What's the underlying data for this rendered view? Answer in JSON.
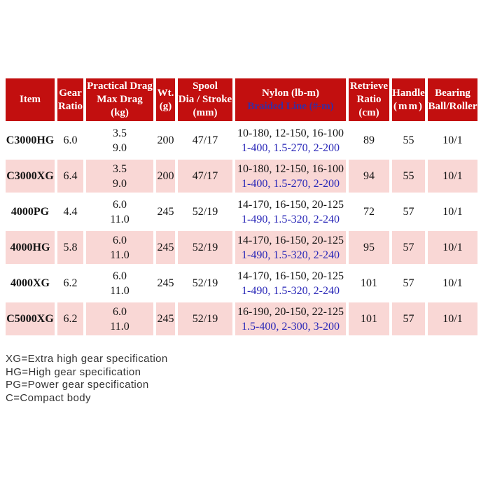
{
  "colors": {
    "header_bg": "#c20f0f",
    "header_text": "#ffffff",
    "pink_row_bg": "#f9d7d5",
    "white_row_bg": "#ffffff",
    "braided_line_text": "#2a28b8",
    "braided_header_text": "#3a2da0",
    "body_text": "#141414"
  },
  "table": {
    "header": {
      "item": "Item",
      "gear": [
        "Gear",
        "Ratio"
      ],
      "drag": [
        "Practical Drag",
        "Max Drag",
        "(kg)"
      ],
      "wt": [
        "Wt.",
        "(g)"
      ],
      "spool": [
        "Spool",
        "Dia / Stroke",
        "(mm)"
      ],
      "line": {
        "nylon": "Nylon (lb-m)",
        "braided": "Braided Line (#-m)"
      },
      "retrieve": [
        "Retrieve",
        "Ratio",
        "(cm)"
      ],
      "handle": [
        "Handle",
        "(mm)"
      ],
      "bearing": [
        "Bearing",
        "Ball/Roller"
      ]
    },
    "rows": [
      {
        "item": "C3000HG",
        "gear": "6.0",
        "drag": [
          "3.5",
          "9.0"
        ],
        "wt": "200",
        "spool": "47/17",
        "nylon": "10-180, 12-150, 16-100",
        "braided": "1-400, 1.5-270, 2-200",
        "retrieve": "89",
        "handle": "55",
        "bearing": "10/1"
      },
      {
        "item": "C3000XG",
        "gear": "6.4",
        "drag": [
          "3.5",
          "9.0"
        ],
        "wt": "200",
        "spool": "47/17",
        "nylon": "10-180, 12-150, 16-100",
        "braided": "1-400, 1.5-270, 2-200",
        "retrieve": "94",
        "handle": "55",
        "bearing": "10/1"
      },
      {
        "item": "4000PG",
        "gear": "4.4",
        "drag": [
          "6.0",
          "11.0"
        ],
        "wt": "245",
        "spool": "52/19",
        "nylon": "14-170, 16-150, 20-125",
        "braided": "1-490, 1.5-320, 2-240",
        "retrieve": "72",
        "handle": "57",
        "bearing": "10/1"
      },
      {
        "item": "4000HG",
        "gear": "5.8",
        "drag": [
          "6.0",
          "11.0"
        ],
        "wt": "245",
        "spool": "52/19",
        "nylon": "14-170, 16-150, 20-125",
        "braided": "1-490, 1.5-320, 2-240",
        "retrieve": "95",
        "handle": "57",
        "bearing": "10/1"
      },
      {
        "item": "4000XG",
        "gear": "6.2",
        "drag": [
          "6.0",
          "11.0"
        ],
        "wt": "245",
        "spool": "52/19",
        "nylon": "14-170, 16-150, 20-125",
        "braided": "1-490, 1.5-320, 2-240",
        "retrieve": "101",
        "handle": "57",
        "bearing": "10/1"
      },
      {
        "item": "C5000XG",
        "gear": "6.2",
        "drag": [
          "6.0",
          "11.0"
        ],
        "wt": "245",
        "spool": "52/19",
        "nylon": "16-190, 20-150, 22-125",
        "braided": "1.5-400, 2-300, 3-200",
        "retrieve": "101",
        "handle": "57",
        "bearing": "10/1"
      }
    ]
  },
  "footnotes": [
    "XG=Extra high gear specification",
    "HG=High gear specification",
    "PG=Power gear specification",
    "C=Compact body"
  ]
}
